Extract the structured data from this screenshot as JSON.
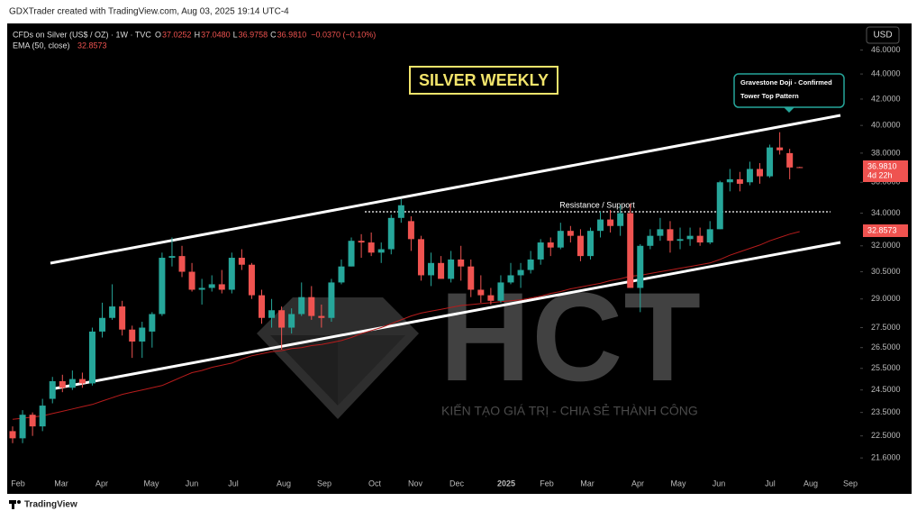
{
  "header": {
    "credit": "GDXTrader created with TradingView.com, Aug 03, 2025 19:14 UTC-4",
    "symbol": "CFDs on Silver (US$ / OZ) · 1W · TVC",
    "ohlc": [
      {
        "k": "O",
        "v": "37.0252"
      },
      {
        "k": "H",
        "v": "37.0480"
      },
      {
        "k": "L",
        "v": "36.9758"
      },
      {
        "k": "C",
        "v": "36.9810"
      }
    ],
    "change": "−0.0370 (−0.10%)",
    "ema_name": "EMA (50, close)",
    "ema_value": "32.8573",
    "currency": "USD"
  },
  "chart_data": {
    "type": "candlestick",
    "title": "SILVER WEEKLY",
    "annotations": {
      "pattern_1": "Gravestone Doji - Confirmed",
      "pattern_2": "Tower Top Pattern",
      "level": "Resistance / Support"
    },
    "log_scale": true,
    "grid": false,
    "up_color": "#26a69a",
    "down_color": "#ef5350",
    "ema_color": "#b71c1c",
    "ylim": [
      21,
      48
    ],
    "yticks": [
      {
        "value": 46,
        "label": "46.0000"
      },
      {
        "value": 44,
        "label": "44.0000"
      },
      {
        "value": 42,
        "label": "42.0000"
      },
      {
        "value": 40,
        "label": "40.0000"
      },
      {
        "value": 38,
        "label": "38.0000"
      },
      {
        "value": 36,
        "label": "36.0000"
      },
      {
        "value": 34,
        "label": "34.0000"
      },
      {
        "value": 32,
        "label": "32.0000"
      },
      {
        "value": 30.5,
        "label": "30.5000"
      },
      {
        "value": 29,
        "label": "29.0000"
      },
      {
        "value": 27.5,
        "label": "27.5000"
      },
      {
        "value": 26.5,
        "label": "26.5000"
      },
      {
        "value": 25.5,
        "label": "25.5000"
      },
      {
        "value": 24.5,
        "label": "24.5000"
      },
      {
        "value": 23.5,
        "label": "23.5000"
      },
      {
        "value": 22.5,
        "label": "22.5000"
      },
      {
        "value": 21.6,
        "label": "21.6000"
      }
    ],
    "x_labels": [
      "Feb",
      "Mar",
      "Apr",
      "May",
      "Jun",
      "Jul",
      "Aug",
      "Sep",
      "Oct",
      "Nov",
      "Dec",
      "2025",
      "Feb",
      "Mar",
      "Apr",
      "May",
      "Jun",
      "Jul",
      "Aug",
      "Sep"
    ],
    "open": [
      22.7,
      22.4,
      23.4,
      22.9,
      24.1,
      24.9,
      24.6,
      25.0,
      24.8,
      27.3,
      28.0,
      28.6,
      27.4,
      26.8,
      27.3,
      28.2,
      31.3,
      31.4,
      30.5,
      29.5,
      29.6,
      29.8,
      29.5,
      31.3,
      30.9,
      29.2,
      28.0,
      28.4,
      27.5,
      28.2,
      29.1,
      28.1,
      28.0,
      29.9,
      30.8,
      32.3,
      32.2,
      31.6,
      31.8,
      33.7,
      33.5,
      32.4,
      30.3,
      31.0,
      30.1,
      31.2,
      30.8,
      29.5,
      29.2,
      28.9,
      29.9,
      30.3,
      30.6,
      31.2,
      32.2,
      31.9,
      32.9,
      32.6,
      31.4,
      32.9,
      33.6,
      33.2,
      34.0,
      29.6,
      32.0,
      32.6,
      33.0,
      32.3,
      32.4,
      32.6,
      32.2,
      33.0,
      36.0,
      36.2,
      36.0,
      36.9,
      36.4,
      38.4,
      38.0,
      37.0252
    ],
    "high": [
      22.9,
      23.6,
      23.5,
      24.1,
      25.1,
      25.2,
      25.4,
      25.3,
      27.5,
      28.8,
      29.8,
      28.9,
      27.6,
      27.8,
      28.3,
      31.6,
      32.5,
      32.0,
      31.0,
      30.1,
      30.3,
      30.6,
      31.6,
      31.8,
      31.0,
      29.5,
      29.0,
      28.6,
      28.5,
      29.9,
      29.7,
      28.7,
      30.1,
      31.2,
      32.5,
      32.7,
      32.8,
      32.2,
      33.9,
      34.9,
      33.8,
      32.6,
      31.6,
      31.4,
      31.7,
      32.0,
      31.2,
      30.3,
      29.6,
      30.3,
      31.0,
      31.0,
      31.7,
      32.4,
      32.5,
      33.4,
      33.2,
      33.0,
      33.1,
      34.1,
      34.2,
      34.5,
      34.6,
      32.1,
      33.0,
      33.7,
      33.5,
      33.1,
      33.1,
      33.1,
      33.5,
      36.1,
      36.9,
      36.7,
      37.4,
      37.3,
      38.6,
      39.5,
      38.3,
      37.048
    ],
    "low": [
      22.2,
      22.2,
      22.5,
      22.7,
      23.9,
      24.4,
      24.5,
      24.6,
      24.7,
      27.0,
      27.9,
      27.1,
      26.0,
      26.0,
      26.5,
      28.1,
      30.8,
      30.2,
      29.4,
      28.7,
      29.4,
      29.3,
      29.3,
      30.6,
      29.0,
      27.7,
      27.5,
      26.4,
      27.2,
      28.1,
      27.9,
      27.5,
      27.8,
      29.8,
      30.8,
      31.3,
      31.4,
      31.0,
      31.5,
      33.4,
      31.7,
      30.0,
      29.7,
      30.1,
      29.9,
      30.0,
      29.1,
      28.8,
      28.7,
      28.8,
      29.8,
      29.6,
      30.4,
      30.9,
      31.4,
      31.8,
      32.2,
      31.1,
      31.2,
      32.5,
      32.8,
      32.6,
      29.6,
      28.3,
      31.8,
      32.3,
      31.6,
      31.8,
      32.0,
      32.0,
      32.1,
      33.0,
      35.4,
      35.4,
      35.8,
      35.9,
      36.3,
      37.9,
      36.2,
      36.9758
    ],
    "close": [
      22.4,
      23.4,
      22.9,
      23.8,
      24.9,
      24.6,
      25.0,
      24.8,
      27.3,
      28.0,
      28.6,
      27.4,
      26.8,
      27.5,
      28.2,
      31.3,
      31.4,
      30.5,
      29.5,
      29.6,
      29.8,
      29.5,
      31.3,
      30.9,
      29.2,
      28.0,
      28.4,
      27.5,
      28.2,
      29.1,
      28.1,
      28.0,
      29.9,
      30.8,
      32.3,
      32.2,
      31.6,
      31.8,
      33.7,
      34.5,
      32.4,
      30.3,
      31.0,
      30.1,
      31.2,
      30.8,
      29.5,
      29.2,
      28.9,
      29.9,
      30.3,
      30.6,
      31.2,
      32.2,
      31.9,
      32.9,
      32.6,
      31.4,
      32.9,
      33.6,
      33.2,
      34.0,
      29.6,
      32.0,
      32.6,
      33.0,
      32.3,
      32.4,
      32.6,
      32.2,
      33.0,
      36.0,
      36.2,
      35.9,
      36.9,
      36.4,
      38.4,
      38.2,
      37.0,
      36.981
    ],
    "ema": [
      23.2,
      23.25,
      23.3,
      23.35,
      23.45,
      23.55,
      23.65,
      23.75,
      23.85,
      24.0,
      24.15,
      24.3,
      24.4,
      24.5,
      24.6,
      24.7,
      24.9,
      25.1,
      25.3,
      25.4,
      25.55,
      25.65,
      25.75,
      25.95,
      26.1,
      26.2,
      26.3,
      26.35,
      26.45,
      26.5,
      26.6,
      26.65,
      26.75,
      26.85,
      27.0,
      27.2,
      27.35,
      27.5,
      27.7,
      27.9,
      28.1,
      28.25,
      28.35,
      28.45,
      28.55,
      28.65,
      28.7,
      28.75,
      28.8,
      28.85,
      28.9,
      28.95,
      29.05,
      29.15,
      29.3,
      29.4,
      29.55,
      29.65,
      29.75,
      29.85,
      30.0,
      30.1,
      30.25,
      30.3,
      30.4,
      30.5,
      30.6,
      30.7,
      30.8,
      30.9,
      31.0,
      31.2,
      31.45,
      31.65,
      31.85,
      32.05,
      32.3,
      32.5,
      32.7,
      32.8573
    ],
    "tags": {
      "last": "36.9810",
      "countdown": "4d 22h",
      "ema": "32.8573"
    }
  },
  "watermark": {
    "logo": "HCT",
    "tagline": "KIẾN TẠO GIÁ TRỊ - CHIA SẺ THÀNH CÔNG"
  },
  "footer": {
    "brand": "TradingView"
  }
}
